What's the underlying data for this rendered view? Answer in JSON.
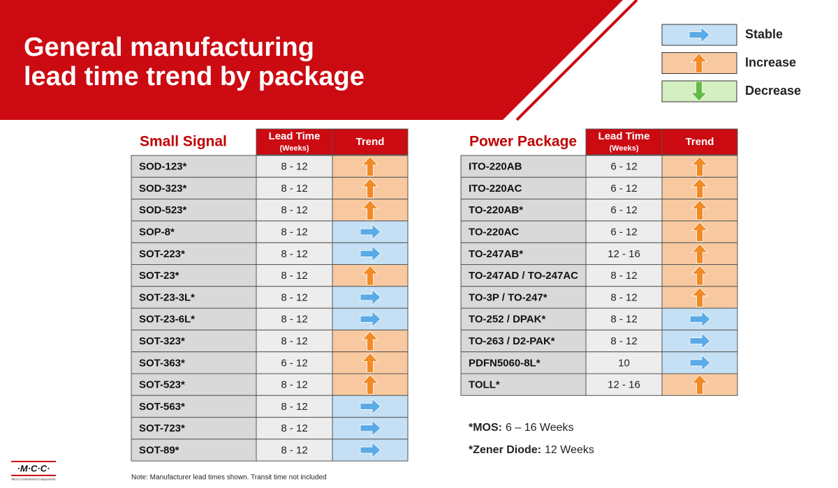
{
  "header": {
    "title_lines": [
      "General manufacturing",
      "lead time trend by package"
    ]
  },
  "legend": [
    "Stable",
    "Increase",
    "Decrease"
  ],
  "tables": [
    {
      "title": "Small Signal",
      "lead_time_header": "Lead Time",
      "lead_time_unit": "(Weeks)",
      "trend_header": "Trend",
      "rows": [
        [
          "SOD-123*",
          "8 - 12",
          "Increase"
        ],
        [
          "SOD-323*",
          "8 - 12",
          "Increase"
        ],
        [
          "SOD-523*",
          "8 - 12",
          "Increase"
        ],
        [
          "SOP-8*",
          "8 - 12",
          "Stable"
        ],
        [
          "SOT-223*",
          "8 - 12",
          "Stable"
        ],
        [
          "SOT-23*",
          "8 - 12",
          "Increase"
        ],
        [
          "SOT-23-3L*",
          "8 - 12",
          "Stable"
        ],
        [
          "SOT-23-6L*",
          "8 - 12",
          "Stable"
        ],
        [
          "SOT-323*",
          "8 - 12",
          "Increase"
        ],
        [
          "SOT-363*",
          "6 - 12",
          "Increase"
        ],
        [
          "SOT-523*",
          "8 - 12",
          "Increase"
        ],
        [
          "SOT-563*",
          "8 - 12",
          "Stable"
        ],
        [
          "SOT-723*",
          "8 - 12",
          "Stable"
        ],
        [
          "SOT-89*",
          "8 - 12",
          "Stable"
        ]
      ]
    },
    {
      "title": "Power Package",
      "lead_time_header": "Lead Time",
      "lead_time_unit": "(Weeks)",
      "trend_header": "Trend",
      "rows": [
        [
          "ITO-220AB",
          "6 - 12",
          "Increase"
        ],
        [
          "ITO-220AC",
          "6 - 12",
          "Increase"
        ],
        [
          "TO-220AB*",
          "6 - 12",
          "Increase"
        ],
        [
          "TO-220AC",
          "6 - 12",
          "Increase"
        ],
        [
          "TO-247AB*",
          "12 - 16",
          "Increase"
        ],
        [
          "TO-247AD / TO-247AC",
          "8 - 12",
          "Increase"
        ],
        [
          "TO-3P / TO-247*",
          "8 - 12",
          "Increase"
        ],
        [
          "TO-252 / DPAK*",
          "8 - 12",
          "Stable"
        ],
        [
          "TO-263 / D2-PAK*",
          "8 - 12",
          "Stable"
        ],
        [
          "PDFN5060-8L*",
          "10",
          "Stable"
        ],
        [
          "TOLL*",
          "12 - 16",
          "Increase"
        ]
      ]
    }
  ],
  "notes": [
    {
      "bold": "*MOS:",
      "text": "6 – 16 Weeks"
    },
    {
      "bold": "*Zener Diode:",
      "text": "12 Weeks"
    }
  ],
  "footnote": "Note: Manufacturer lead times shown. Transit time not included",
  "logo": {
    "mark": "·M·C·C·",
    "name": "Micro Commercial Components"
  }
}
